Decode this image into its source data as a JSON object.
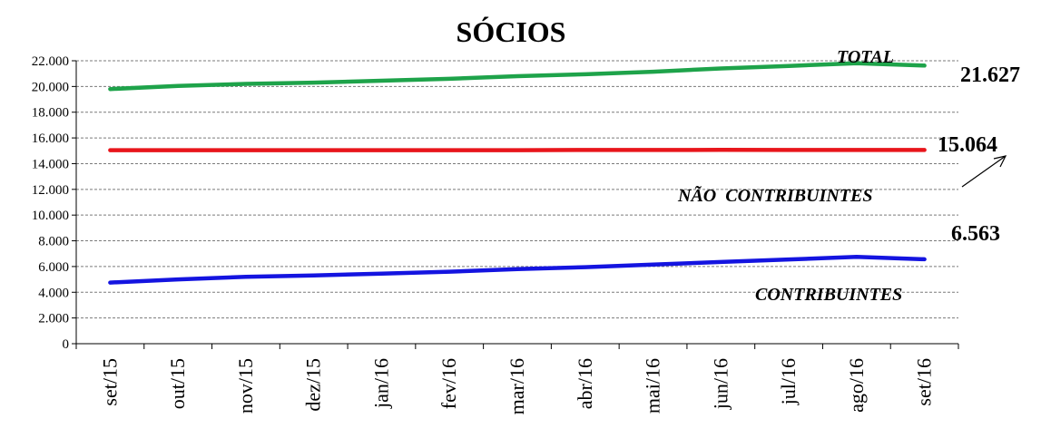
{
  "chart_data": {
    "type": "line",
    "title": "SÓCIOS",
    "xlabel": "",
    "ylabel": "",
    "categories": [
      "set/15",
      "out/15",
      "nov/15",
      "dez/15",
      "jan/16",
      "fev/16",
      "mar/16",
      "abr/16",
      "mai/16",
      "jun/16",
      "jul/16",
      "ago/16",
      "set/16"
    ],
    "ylim": [
      0,
      22000
    ],
    "yticks": [
      0,
      2000,
      4000,
      6000,
      8000,
      10000,
      12000,
      14000,
      16000,
      18000,
      20000,
      22000
    ],
    "ytick_labels": [
      "0",
      "2.000",
      "4.000",
      "6.000",
      "8.000",
      "10.000",
      "12.000",
      "14.000",
      "16.000",
      "18.000",
      "20.000",
      "22.000"
    ],
    "grid": true,
    "series": [
      {
        "name": "TOTAL",
        "color": "#1ea34a",
        "values": [
          19800,
          20050,
          20200,
          20300,
          20450,
          20600,
          20800,
          20950,
          21150,
          21400,
          21600,
          21800,
          21627
        ],
        "end_label": "21.627"
      },
      {
        "name": "NÃO  CONTRIBUINTES",
        "color": "#e8151b",
        "values": [
          15050,
          15050,
          15050,
          15050,
          15050,
          15050,
          15050,
          15060,
          15060,
          15070,
          15060,
          15060,
          15064
        ],
        "end_label": "15.064"
      },
      {
        "name": "CONTRIBUINTES",
        "color": "#1414e0",
        "values": [
          4750,
          5000,
          5200,
          5300,
          5450,
          5600,
          5800,
          5950,
          6150,
          6350,
          6550,
          6750,
          6563
        ],
        "end_label": "6.563"
      }
    ]
  }
}
